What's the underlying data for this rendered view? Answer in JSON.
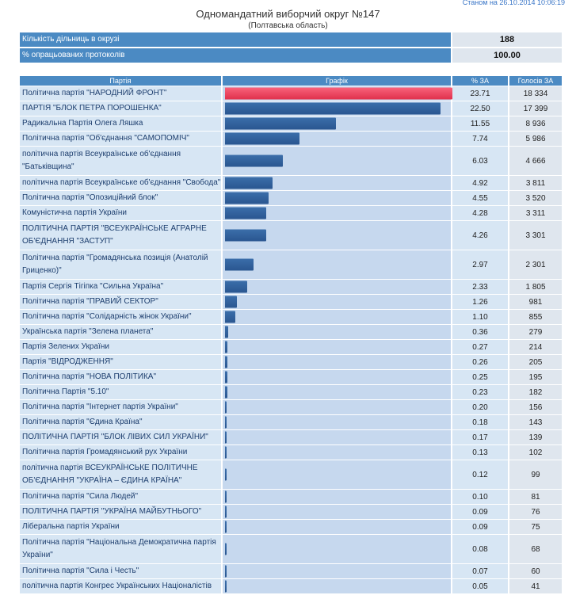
{
  "header": {
    "top_partial": "Станом на 26.10.2014 10:06:19",
    "title": "Одномандатний виборчий округ №147",
    "subtitle": "(Полтавська область)"
  },
  "stats": [
    {
      "label": "Кількість дільниць в окрузі",
      "value": "188"
    },
    {
      "label": "% опрацьованих протоколів",
      "value": "100.00"
    }
  ],
  "table": {
    "headers": {
      "party": "Партія",
      "graph": "Графік",
      "pct": "% ЗА",
      "votes": "Голосів ЗА"
    }
  },
  "colors": {
    "header_bg": "#4b8ac3",
    "bar": "#2f5f9c",
    "leader_bar": "#ef4560"
  },
  "chart_data": {
    "type": "bar",
    "orientation": "horizontal",
    "xlim": [
      0,
      23.71
    ],
    "rows": [
      {
        "party": "Політична партія \"НАРОДНИЙ ФРОНТ\"",
        "pct": "23.71",
        "votes": "18 334",
        "value": 23.71,
        "tall": false
      },
      {
        "party": "ПАРТІЯ \"БЛОК ПЕТРА ПОРОШЕНКА\"",
        "pct": "22.50",
        "votes": "17 399",
        "value": 22.5,
        "tall": false
      },
      {
        "party": "Радикальна Партія Олега Ляшка",
        "pct": "11.55",
        "votes": "8 936",
        "value": 11.55,
        "tall": false
      },
      {
        "party": "Політична партія \"Об'єднання \"САМОПОМІЧ\"",
        "pct": "7.74",
        "votes": "5 986",
        "value": 7.74,
        "tall": false
      },
      {
        "party": "політична партія Всеукраїнське об'єднання \"Батьківщина\"",
        "pct": "6.03",
        "votes": "4 666",
        "value": 6.03,
        "tall": true
      },
      {
        "party": "політична партія Всеукраїнське об'єднання \"Свобода\"",
        "pct": "4.92",
        "votes": "3 811",
        "value": 4.92,
        "tall": false
      },
      {
        "party": "Політична партія \"Опозиційний блок\"",
        "pct": "4.55",
        "votes": "3 520",
        "value": 4.55,
        "tall": false
      },
      {
        "party": "Комуністична партія України",
        "pct": "4.28",
        "votes": "3 311",
        "value": 4.28,
        "tall": false
      },
      {
        "party": "ПОЛІТИЧНА ПАРТІЯ \"ВСЕУКРАЇНСЬКЕ АГРАРНЕ ОБ'ЄДНАННЯ \"ЗАСТУП\"",
        "pct": "4.26",
        "votes": "3 301",
        "value": 4.26,
        "tall": true
      },
      {
        "party": "Політична партія \"Громадянська позиція (Анатолій Гриценко)\"",
        "pct": "2.97",
        "votes": "2 301",
        "value": 2.97,
        "tall": true
      },
      {
        "party": "Партія Сергія Тігіпка \"Сильна Україна\"",
        "pct": "2.33",
        "votes": "1 805",
        "value": 2.33,
        "tall": false
      },
      {
        "party": "Політична партія \"ПРАВИЙ СЕКТОР\"",
        "pct": "1.26",
        "votes": "981",
        "value": 1.26,
        "tall": false
      },
      {
        "party": "Політична партія \"Солідарність жінок України\"",
        "pct": "1.10",
        "votes": "855",
        "value": 1.1,
        "tall": false
      },
      {
        "party": "Українська партія \"Зелена планета\"",
        "pct": "0.36",
        "votes": "279",
        "value": 0.36,
        "tall": false
      },
      {
        "party": "Партія Зелених України",
        "pct": "0.27",
        "votes": "214",
        "value": 0.27,
        "tall": false
      },
      {
        "party": "Партія \"ВІДРОДЖЕННЯ\"",
        "pct": "0.26",
        "votes": "205",
        "value": 0.26,
        "tall": false
      },
      {
        "party": "Політична партія \"НОВА ПОЛІТИКА\"",
        "pct": "0.25",
        "votes": "195",
        "value": 0.25,
        "tall": false
      },
      {
        "party": "Політична Партія \"5.10\"",
        "pct": "0.23",
        "votes": "182",
        "value": 0.23,
        "tall": false
      },
      {
        "party": "Політична партія \"Інтернет партія України\"",
        "pct": "0.20",
        "votes": "156",
        "value": 0.2,
        "tall": false
      },
      {
        "party": "Політична партія \"Єдина Країна\"",
        "pct": "0.18",
        "votes": "143",
        "value": 0.18,
        "tall": false
      },
      {
        "party": "ПОЛІТИЧНА ПАРТІЯ \"БЛОК ЛІВИХ СИЛ УКРАЇНИ\"",
        "pct": "0.17",
        "votes": "139",
        "value": 0.17,
        "tall": false
      },
      {
        "party": "Політична партія Громадянський рух України",
        "pct": "0.13",
        "votes": "102",
        "value": 0.13,
        "tall": false
      },
      {
        "party": "політична партія ВСЕУКРАЇНСЬКЕ ПОЛІТИЧНЕ ОБ'ЄДНАННЯ \"УКРАЇНА – ЄДИНА КРАЇНА\"",
        "pct": "0.12",
        "votes": "99",
        "value": 0.12,
        "tall": true
      },
      {
        "party": "Політична партія \"Сила Людей\"",
        "pct": "0.10",
        "votes": "81",
        "value": 0.1,
        "tall": false
      },
      {
        "party": "ПОЛІТИЧНА ПАРТІЯ \"УКРАЇНА МАЙБУТНЬОГО\"",
        "pct": "0.09",
        "votes": "76",
        "value": 0.09,
        "tall": false
      },
      {
        "party": "Ліберальна партія України",
        "pct": "0.09",
        "votes": "75",
        "value": 0.09,
        "tall": false
      },
      {
        "party": "Політична партія \"Національна Демократична партія України\"",
        "pct": "0.08",
        "votes": "68",
        "value": 0.08,
        "tall": true
      },
      {
        "party": "Політична партія \"Сила і Честь\"",
        "pct": "0.07",
        "votes": "60",
        "value": 0.07,
        "tall": false
      },
      {
        "party": "політична партія Конгрес Українських Націоналістів",
        "pct": "0.05",
        "votes": "41",
        "value": 0.05,
        "tall": false
      }
    ]
  }
}
